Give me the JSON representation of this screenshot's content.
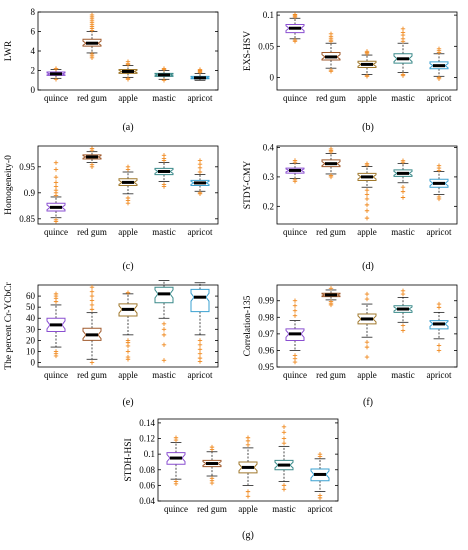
{
  "colors": {
    "quince": "#8a4fd0",
    "red gum": "#a05a2c",
    "apple": "#a0782c",
    "mastic": "#3a8a8a",
    "apricot": "#3aa0d0",
    "outlier": "#f08a20",
    "median": "#000000",
    "axis": "#000000",
    "whisker": "#000000"
  },
  "chart_data": [
    {
      "type": "box",
      "caption": "(a)",
      "ylabel": "LWR",
      "categories": [
        "quince",
        "red gum",
        "apple",
        "mastic",
        "apricot"
      ],
      "ylim": [
        0,
        8
      ],
      "yticks": [
        0,
        2,
        4,
        6,
        8
      ],
      "yticklabels": [
        "0",
        "2",
        "4",
        "6",
        "8"
      ],
      "boxes": [
        {
          "q1": 1.5,
          "median": 1.65,
          "q3": 1.85,
          "wlow": 1.2,
          "whigh": 2.1,
          "outliers": [
            1.1,
            2.15,
            2.2
          ]
        },
        {
          "q1": 4.5,
          "median": 4.8,
          "q3": 5.2,
          "wlow": 3.8,
          "whigh": 6.0,
          "outliers": [
            3.3,
            3.5,
            3.7,
            6.1,
            6.3,
            6.5,
            6.7,
            6.9,
            7.1,
            7.3,
            7.5,
            7.7
          ]
        },
        {
          "q1": 1.7,
          "median": 1.9,
          "q3": 2.1,
          "wlow": 1.3,
          "whigh": 2.5,
          "outliers": [
            1.1,
            1.2,
            2.6,
            2.7,
            2.9
          ]
        },
        {
          "q1": 1.4,
          "median": 1.55,
          "q3": 1.7,
          "wlow": 1.1,
          "whigh": 2.0,
          "outliers": [
            1.0,
            2.1,
            2.2
          ]
        },
        {
          "q1": 1.15,
          "median": 1.25,
          "q3": 1.4,
          "wlow": 1.0,
          "whigh": 1.7,
          "outliers": [
            1.8,
            1.9,
            2.0,
            2.1
          ]
        }
      ]
    },
    {
      "type": "box",
      "caption": "(b)",
      "ylabel": "EXS-HSV",
      "categories": [
        "quince",
        "red gum",
        "apple",
        "mastic",
        "apricot"
      ],
      "ylim": [
        -0.02,
        0.105
      ],
      "yticks": [
        0,
        0.05,
        0.1
      ],
      "yticklabels": [
        "0",
        "0.05",
        "0.1"
      ],
      "boxes": [
        {
          "q1": 0.072,
          "median": 0.079,
          "q3": 0.085,
          "wlow": 0.062,
          "whigh": 0.095,
          "outliers": [
            0.058,
            0.06,
            0.097,
            0.099,
            0.101
          ]
        },
        {
          "q1": 0.028,
          "median": 0.033,
          "q3": 0.04,
          "wlow": 0.015,
          "whigh": 0.055,
          "outliers": [
            0.01,
            0.012,
            0.058,
            0.06,
            0.063,
            0.066,
            0.07
          ]
        },
        {
          "q1": 0.016,
          "median": 0.021,
          "q3": 0.026,
          "wlow": 0.005,
          "whigh": 0.036,
          "outliers": [
            0.002,
            0.003,
            0.038,
            0.04,
            0.042
          ]
        },
        {
          "q1": 0.023,
          "median": 0.03,
          "q3": 0.038,
          "wlow": 0.008,
          "whigh": 0.055,
          "outliers": [
            0.003,
            0.005,
            0.058,
            0.062,
            0.068,
            0.072,
            0.078
          ]
        },
        {
          "q1": 0.014,
          "median": 0.019,
          "q3": 0.025,
          "wlow": 0.002,
          "whigh": 0.038,
          "outliers": [
            -0.002,
            0.0,
            0.04,
            0.043,
            0.046
          ]
        }
      ]
    },
    {
      "type": "box",
      "caption": "(c)",
      "ylabel": "Homogeneity-0",
      "categories": [
        "quince",
        "red gum",
        "apple",
        "mastic",
        "apricot"
      ],
      "ylim": [
        0.84,
        0.99
      ],
      "yticks": [
        0.85,
        0.9,
        0.95
      ],
      "yticklabels": [
        "0.85",
        "0.9",
        "0.95"
      ],
      "boxes": [
        {
          "q1": 0.865,
          "median": 0.872,
          "q3": 0.88,
          "wlow": 0.852,
          "whigh": 0.892,
          "outliers": [
            0.845,
            0.848,
            0.895,
            0.9,
            0.905,
            0.912,
            0.92,
            0.93,
            0.945,
            0.958
          ]
        },
        {
          "q1": 0.965,
          "median": 0.969,
          "q3": 0.973,
          "wlow": 0.958,
          "whigh": 0.979,
          "outliers": [
            0.95,
            0.954,
            0.982,
            0.985
          ]
        },
        {
          "q1": 0.914,
          "median": 0.92,
          "q3": 0.927,
          "wlow": 0.898,
          "whigh": 0.94,
          "outliers": [
            0.88,
            0.885,
            0.89,
            0.945,
            0.95
          ]
        },
        {
          "q1": 0.935,
          "median": 0.941,
          "q3": 0.947,
          "wlow": 0.922,
          "whigh": 0.958,
          "outliers": [
            0.912,
            0.916,
            0.962,
            0.966,
            0.972
          ]
        },
        {
          "q1": 0.914,
          "median": 0.919,
          "q3": 0.924,
          "wlow": 0.903,
          "whigh": 0.935,
          "outliers": [
            0.898,
            0.9,
            0.94,
            0.948,
            0.955,
            0.962
          ]
        }
      ]
    },
    {
      "type": "box",
      "caption": "(d)",
      "ylabel": "STDY-CMY",
      "categories": [
        "quince",
        "red gum",
        "apple",
        "mastic",
        "apricot"
      ],
      "ylim": [
        0.14,
        0.405
      ],
      "yticks": [
        0.2,
        0.3,
        0.4
      ],
      "yticklabels": [
        "0.2",
        "0.3",
        "0.4"
      ],
      "boxes": [
        {
          "q1": 0.313,
          "median": 0.322,
          "q3": 0.33,
          "wlow": 0.295,
          "whigh": 0.345,
          "outliers": [
            0.285,
            0.29,
            0.35,
            0.356
          ]
        },
        {
          "q1": 0.335,
          "median": 0.345,
          "q3": 0.358,
          "wlow": 0.31,
          "whigh": 0.38,
          "outliers": [
            0.3,
            0.305,
            0.385,
            0.39,
            0.395
          ]
        },
        {
          "q1": 0.288,
          "median": 0.3,
          "q3": 0.312,
          "wlow": 0.265,
          "whigh": 0.335,
          "outliers": [
            0.16,
            0.185,
            0.205,
            0.225,
            0.24,
            0.255,
            0.34,
            0.345
          ]
        },
        {
          "q1": 0.302,
          "median": 0.312,
          "q3": 0.324,
          "wlow": 0.28,
          "whigh": 0.345,
          "outliers": [
            0.23,
            0.25,
            0.265,
            0.35,
            0.355
          ]
        },
        {
          "q1": 0.265,
          "median": 0.278,
          "q3": 0.292,
          "wlow": 0.24,
          "whigh": 0.318,
          "outliers": [
            0.225,
            0.232,
            0.322,
            0.33,
            0.338
          ]
        }
      ]
    },
    {
      "type": "box",
      "caption": "(e)",
      "ylabel": "The percent Cr-YCbCr",
      "categories": [
        "quince",
        "red gum",
        "apple",
        "mastic",
        "apricot"
      ],
      "ylim": [
        -4,
        70
      ],
      "yticks": [
        0,
        10,
        20,
        30,
        40,
        50,
        60
      ],
      "yticklabels": [
        "0",
        "10",
        "20",
        "30",
        "40",
        "50",
        "60"
      ],
      "boxes": [
        {
          "q1": 28,
          "median": 34,
          "q3": 40,
          "wlow": 14,
          "whigh": 52,
          "outliers": [
            6,
            8,
            10,
            55,
            58,
            60,
            62
          ]
        },
        {
          "q1": 20,
          "median": 25,
          "q3": 31,
          "wlow": 3,
          "whigh": 45,
          "outliers": [
            0,
            48,
            52,
            56,
            60,
            64,
            68
          ]
        },
        {
          "q1": 42,
          "median": 48,
          "q3": 53,
          "wlow": 25,
          "whigh": 62,
          "outliers": [
            3,
            5,
            10,
            15,
            18,
            20,
            63
          ]
        },
        {
          "q1": 54,
          "median": 62,
          "q3": 68,
          "wlow": 40,
          "whigh": 74,
          "outliers": [
            2,
            16,
            25,
            30,
            35
          ]
        },
        {
          "q1": 46,
          "median": 59,
          "q3": 66,
          "wlow": 25,
          "whigh": 72,
          "outliers": [
            1,
            4,
            8,
            12,
            16,
            20
          ]
        }
      ]
    },
    {
      "type": "box",
      "caption": "(f)",
      "ylabel": "Correlation-135",
      "categories": [
        "quince",
        "red gum",
        "apple",
        "mastic",
        "apricot"
      ],
      "ylim": [
        0.95,
        0.9995
      ],
      "yticks": [
        0.95,
        0.96,
        0.97,
        0.98,
        0.99
      ],
      "yticklabels": [
        "0.95",
        "0.96",
        "0.97",
        "0.98",
        "0.99"
      ],
      "boxes": [
        {
          "q1": 0.966,
          "median": 0.97,
          "q3": 0.973,
          "wlow": 0.96,
          "whigh": 0.978,
          "outliers": [
            0.953,
            0.955,
            0.957,
            0.981,
            0.984,
            0.987,
            0.99
          ]
        },
        {
          "q1": 0.9925,
          "median": 0.9935,
          "q3": 0.9945,
          "wlow": 0.9905,
          "whigh": 0.9965,
          "outliers": [
            0.9875,
            0.9885,
            0.9895,
            0.9975
          ]
        },
        {
          "q1": 0.976,
          "median": 0.979,
          "q3": 0.982,
          "wlow": 0.968,
          "whigh": 0.988,
          "outliers": [
            0.956,
            0.962,
            0.965,
            0.991,
            0.994
          ]
        },
        {
          "q1": 0.983,
          "median": 0.985,
          "q3": 0.987,
          "wlow": 0.977,
          "whigh": 0.992,
          "outliers": [
            0.972,
            0.975,
            0.994,
            0.996
          ]
        },
        {
          "q1": 0.973,
          "median": 0.976,
          "q3": 0.978,
          "wlow": 0.967,
          "whigh": 0.983,
          "outliers": [
            0.96,
            0.963,
            0.986,
            0.988
          ]
        }
      ]
    },
    {
      "type": "box",
      "caption": "(g)",
      "ylabel": "STDH-HSI",
      "categories": [
        "quince",
        "red gum",
        "apple",
        "mastic",
        "apricot"
      ],
      "ylim": [
        0.04,
        0.145
      ],
      "yticks": [
        0.04,
        0.06,
        0.08,
        0.1,
        0.12,
        0.14
      ],
      "yticklabels": [
        "0.04",
        "0.06",
        "0.08",
        "0.1",
        "0.12",
        "0.14"
      ],
      "boxes": [
        {
          "q1": 0.087,
          "median": 0.095,
          "q3": 0.102,
          "wlow": 0.068,
          "whigh": 0.115,
          "outliers": [
            0.062,
            0.065,
            0.118,
            0.121
          ]
        },
        {
          "q1": 0.084,
          "median": 0.088,
          "q3": 0.092,
          "wlow": 0.072,
          "whigh": 0.103,
          "outliers": [
            0.063,
            0.066,
            0.069,
            0.106,
            0.109
          ]
        },
        {
          "q1": 0.076,
          "median": 0.083,
          "q3": 0.09,
          "wlow": 0.06,
          "whigh": 0.108,
          "outliers": [
            0.046,
            0.052,
            0.112,
            0.117,
            0.121
          ]
        },
        {
          "q1": 0.08,
          "median": 0.086,
          "q3": 0.092,
          "wlow": 0.065,
          "whigh": 0.11,
          "outliers": [
            0.055,
            0.06,
            0.114,
            0.12,
            0.128,
            0.135
          ]
        },
        {
          "q1": 0.066,
          "median": 0.074,
          "q3": 0.081,
          "wlow": 0.052,
          "whigh": 0.094,
          "outliers": [
            0.044,
            0.047,
            0.097,
            0.1
          ]
        }
      ]
    }
  ]
}
